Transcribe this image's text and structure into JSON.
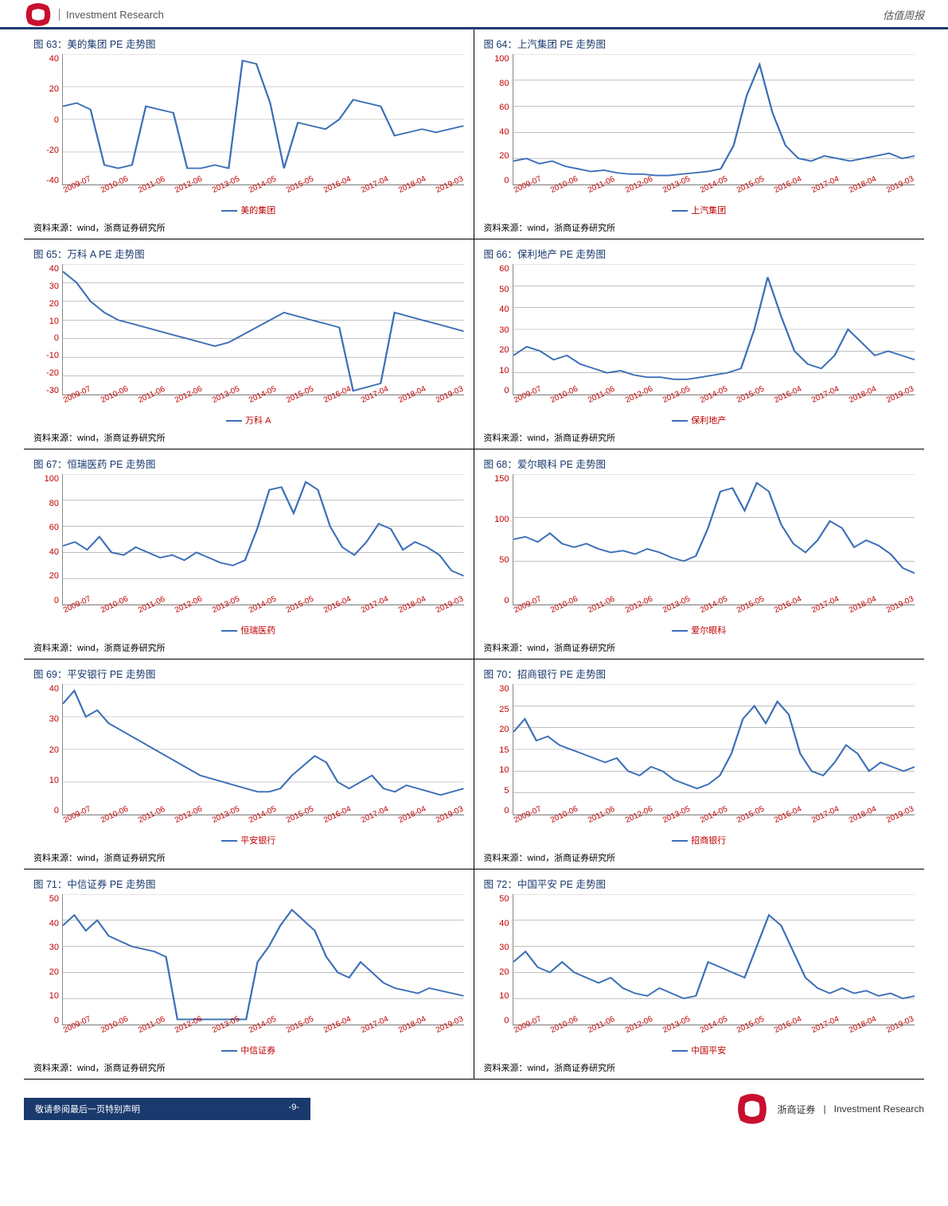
{
  "header": {
    "brand_text": "Investment Research",
    "right_text": "估值周报"
  },
  "footer": {
    "risk_label": "敬请参阅最后一页特别声明",
    "page_num": "-9-",
    "company": "浙商证券",
    "sep": "|",
    "company_en": "Investment Research"
  },
  "shared": {
    "source_text": "资料来源：wind，浙商证券研究所",
    "x_labels": [
      "2009-07",
      "2010-06",
      "2011-06",
      "2012-06",
      "2013-05",
      "2014-05",
      "2015-05",
      "2016-04",
      "2017-04",
      "2018-04",
      "2019-03"
    ],
    "line_color": "#3b6fb6",
    "axis_label_color": "#c00000",
    "grid_color": "#999999",
    "title_color": "#1a3a6e"
  },
  "charts": [
    {
      "id": 63,
      "title": "图 63：美的集团 PE 走势图",
      "legend": "美的集团",
      "y_min": -40,
      "y_max": 40,
      "y_step": 20,
      "values": [
        8,
        10,
        6,
        -28,
        -30,
        -28,
        8,
        6,
        4,
        -30,
        -30,
        -28,
        -30,
        36,
        34,
        10,
        -30,
        -2,
        -4,
        -6,
        0,
        12,
        10,
        8,
        -10,
        -8,
        -6,
        -8,
        -6,
        -4
      ]
    },
    {
      "id": 64,
      "title": "图 64：上汽集团 PE 走势图",
      "legend": "上汽集团",
      "y_min": 0,
      "y_max": 100,
      "y_step": 20,
      "values": [
        18,
        20,
        16,
        18,
        14,
        12,
        10,
        11,
        9,
        8,
        8,
        7,
        7,
        8,
        9,
        10,
        12,
        30,
        68,
        92,
        55,
        30,
        20,
        18,
        22,
        20,
        18,
        20,
        22,
        24,
        20,
        22
      ]
    },
    {
      "id": 65,
      "title": "图 65：万科 A PE 走势图",
      "legend": "万科 A",
      "y_min": -30,
      "y_max": 40,
      "y_step": 10,
      "values": [
        36,
        30,
        20,
        14,
        10,
        8,
        6,
        4,
        2,
        0,
        -2,
        -4,
        -2,
        2,
        6,
        10,
        14,
        12,
        10,
        8,
        6,
        -28,
        -26,
        -24,
        14,
        12,
        10,
        8,
        6,
        4
      ]
    },
    {
      "id": 66,
      "title": "图 66：保利地产 PE 走势图",
      "legend": "保利地产",
      "y_min": 0,
      "y_max": 60,
      "y_step": 10,
      "values": [
        18,
        22,
        20,
        16,
        18,
        14,
        12,
        10,
        11,
        9,
        8,
        8,
        7,
        7,
        8,
        9,
        10,
        12,
        30,
        54,
        36,
        20,
        14,
        12,
        18,
        30,
        24,
        18,
        20,
        18,
        16
      ]
    },
    {
      "id": 67,
      "title": "图 67：恒瑞医药 PE 走势图",
      "legend": "恒瑞医药",
      "y_min": 0,
      "y_max": 100,
      "y_step": 20,
      "values": [
        45,
        48,
        42,
        52,
        40,
        38,
        44,
        40,
        36,
        38,
        34,
        40,
        36,
        32,
        30,
        34,
        58,
        88,
        90,
        70,
        94,
        88,
        60,
        44,
        38,
        48,
        62,
        58,
        42,
        48,
        44,
        38,
        26,
        22
      ]
    },
    {
      "id": 68,
      "title": "图 68：爱尔眼科 PE 走势图",
      "legend": "爱尔眼科",
      "y_min": 0,
      "y_max": 150,
      "y_step": 50,
      "values": [
        75,
        78,
        72,
        82,
        70,
        66,
        70,
        64,
        60,
        62,
        58,
        64,
        60,
        54,
        50,
        56,
        88,
        130,
        134,
        108,
        140,
        130,
        92,
        70,
        60,
        74,
        96,
        88,
        66,
        74,
        68,
        58,
        42,
        36
      ]
    },
    {
      "id": 69,
      "title": "图 69：平安银行 PE 走势图",
      "legend": "平安银行",
      "y_min": 0,
      "y_max": 40,
      "y_step": 10,
      "values": [
        34,
        38,
        30,
        32,
        28,
        26,
        24,
        22,
        20,
        18,
        16,
        14,
        12,
        11,
        10,
        9,
        8,
        7,
        7,
        8,
        12,
        15,
        18,
        16,
        10,
        8,
        10,
        12,
        8,
        7,
        9,
        8,
        7,
        6,
        7,
        8
      ]
    },
    {
      "id": 70,
      "title": "图 70：招商银行 PE 走势图",
      "legend": "招商银行",
      "y_min": 0,
      "y_max": 30,
      "y_step": 5,
      "values": [
        19,
        22,
        17,
        18,
        16,
        15,
        14,
        13,
        12,
        13,
        10,
        9,
        11,
        10,
        8,
        7,
        6,
        7,
        9,
        14,
        22,
        25,
        21,
        26,
        23,
        14,
        10,
        9,
        12,
        16,
        14,
        10,
        12,
        11,
        10,
        11
      ]
    },
    {
      "id": 71,
      "title": "图 71：中信证券 PE 走势图",
      "legend": "中信证券",
      "y_min": 0,
      "y_max": 50,
      "y_step": 10,
      "values": [
        38,
        42,
        36,
        40,
        34,
        32,
        30,
        29,
        28,
        26,
        2,
        2,
        2,
        2,
        2,
        2,
        2,
        24,
        30,
        38,
        44,
        40,
        36,
        26,
        20,
        18,
        24,
        20,
        16,
        14,
        13,
        12,
        14,
        13,
        12,
        11
      ]
    },
    {
      "id": 72,
      "title": "图 72：中国平安 PE 走势图",
      "legend": "中国平安",
      "y_min": 0,
      "y_max": 50,
      "y_step": 10,
      "values": [
        24,
        28,
        22,
        20,
        24,
        20,
        18,
        16,
        18,
        14,
        12,
        11,
        14,
        12,
        10,
        11,
        24,
        22,
        20,
        18,
        30,
        42,
        38,
        28,
        18,
        14,
        12,
        14,
        12,
        13,
        11,
        12,
        10,
        11
      ]
    }
  ]
}
